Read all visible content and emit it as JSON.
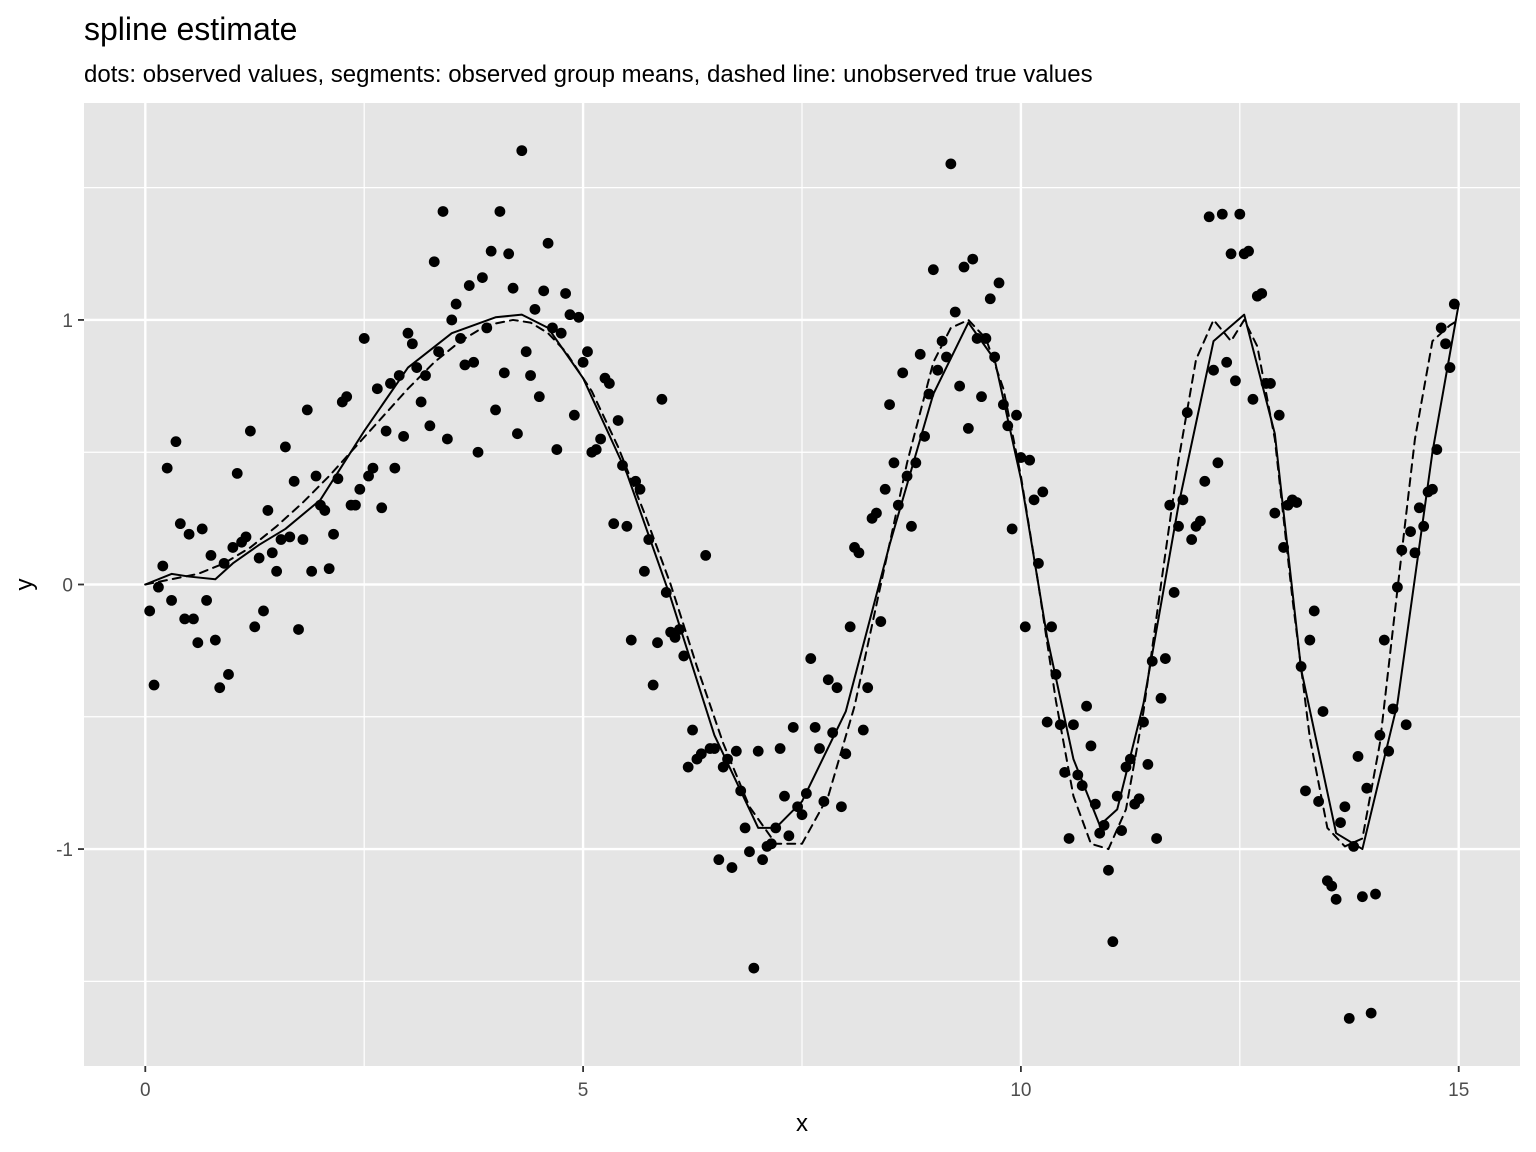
{
  "chart_data": {
    "type": "scatter",
    "title": "spline estimate",
    "subtitle": "dots: observed values, segments: observed group means, dashed line: unobserved true values",
    "xlabel": "x",
    "ylabel": "y",
    "xlim": [
      -0.7,
      15.7
    ],
    "ylim": [
      -1.82,
      1.82
    ],
    "x_ticks": [
      0,
      5,
      10,
      15
    ],
    "x_tick_labels": [
      "0",
      "5",
      "10",
      "15"
    ],
    "y_ticks": [
      -1,
      0,
      1
    ],
    "y_tick_labels": [
      "-1",
      "0",
      "1"
    ],
    "x_minor_ticks": [
      2.5,
      7.5,
      12.5
    ],
    "y_minor_ticks": [
      -1.5,
      -0.5,
      0.5,
      1.5
    ],
    "grid": true,
    "legend": "none",
    "colors": {
      "panel_background": "#e5e5e5",
      "grid_line": "#ffffff",
      "points": "#000000",
      "lines": "#000000",
      "tick_text": "#4d4d4d"
    },
    "series": [
      {
        "type": "points",
        "x": [
          0.05,
          0.1,
          0.15,
          0.2,
          0.25,
          0.3,
          0.35,
          0.4,
          0.45,
          0.5,
          0.55,
          0.6,
          0.65,
          0.7,
          0.75,
          0.8,
          0.85,
          0.9,
          0.95,
          1.0,
          1.05,
          1.1,
          1.15,
          1.2,
          1.25,
          1.3,
          1.35,
          1.4,
          1.45,
          1.5,
          1.55,
          1.6,
          1.65,
          1.7,
          1.75,
          1.8,
          1.85,
          1.9,
          1.95,
          2.0,
          2.05,
          2.1,
          2.15,
          2.2,
          2.25,
          2.3,
          2.35,
          2.4,
          2.45,
          2.5,
          2.55,
          2.6,
          2.65,
          2.7,
          2.75,
          2.8,
          2.85,
          2.9,
          2.95,
          3.0,
          3.05,
          3.1,
          3.15,
          3.2,
          3.25,
          3.3,
          3.35,
          3.4,
          3.45,
          3.5,
          3.55,
          3.6,
          3.65,
          3.7,
          3.75,
          3.8,
          3.85,
          3.9,
          3.95,
          4.0,
          4.05,
          4.1,
          4.15,
          4.2,
          4.25,
          4.3,
          4.35,
          4.4,
          4.45,
          4.5,
          4.55,
          4.6,
          4.65,
          4.7,
          4.75,
          4.8,
          4.85,
          4.9,
          4.95,
          5.0,
          5.05,
          5.1,
          5.15,
          5.2,
          5.25,
          5.3,
          5.35,
          5.4,
          5.45,
          5.5,
          5.55,
          5.6,
          5.65,
          5.7,
          5.75,
          5.8,
          5.85,
          5.9,
          5.95,
          6.0,
          6.05,
          6.1,
          6.15,
          6.2,
          6.25,
          6.3,
          6.35,
          6.4,
          6.45,
          6.5,
          6.55,
          6.6,
          6.65,
          6.7,
          6.75,
          6.8,
          6.85,
          6.9,
          6.95,
          7.0,
          7.05,
          7.1,
          7.15,
          7.2,
          7.25,
          7.3,
          7.35,
          7.4,
          7.45,
          7.5,
          7.55,
          7.6,
          7.65,
          7.7,
          7.75,
          7.8,
          7.85,
          7.9,
          7.95,
          8.0,
          8.05,
          8.1,
          8.15,
          8.2,
          8.25,
          8.3,
          8.35,
          8.4,
          8.45,
          8.5,
          8.55,
          8.6,
          8.65,
          8.7,
          8.75,
          8.8,
          8.85,
          8.9,
          8.95,
          9.0,
          9.05,
          9.1,
          9.15,
          9.2,
          9.25,
          9.3,
          9.35,
          9.4,
          9.45,
          9.5,
          9.55,
          9.6,
          9.65,
          9.7,
          9.75,
          9.8,
          9.85,
          9.9,
          9.95,
          10.0,
          10.05,
          10.1,
          10.15,
          10.2,
          10.25,
          10.3,
          10.35,
          10.4,
          10.45,
          10.5,
          10.55,
          10.6,
          10.65,
          10.7,
          10.75,
          10.8,
          10.85,
          10.9,
          10.95,
          11.0,
          11.05,
          11.1,
          11.15,
          11.2,
          11.25,
          11.3,
          11.35,
          11.4,
          11.45,
          11.5,
          11.55,
          11.6,
          11.65,
          11.7,
          11.75,
          11.8,
          11.85,
          11.9,
          11.95,
          12.0,
          12.05,
          12.1,
          12.15,
          12.2,
          12.25,
          12.3,
          12.35,
          12.4,
          12.45,
          12.5,
          12.55,
          12.6,
          12.65,
          12.7,
          12.75,
          12.8,
          12.85,
          12.9,
          12.95,
          13.0,
          13.05,
          13.1,
          13.15,
          13.2,
          13.25,
          13.3,
          13.35,
          13.4,
          13.45,
          13.5,
          13.55,
          13.6,
          13.65,
          13.7,
          13.75,
          13.8,
          13.85,
          13.9,
          13.95,
          14.0,
          14.05,
          14.1,
          14.15,
          14.2,
          14.25,
          14.3,
          14.35,
          14.4,
          14.45,
          14.5,
          14.55,
          14.6,
          14.65,
          14.7,
          14.75,
          14.8,
          14.85,
          14.9,
          14.95
        ],
        "y": [
          -0.1,
          -0.38,
          -0.01,
          0.07,
          0.44,
          -0.06,
          0.54,
          0.23,
          -0.13,
          0.19,
          -0.13,
          -0.22,
          0.21,
          -0.06,
          0.11,
          -0.21,
          -0.39,
          0.08,
          -0.34,
          0.14,
          0.42,
          0.16,
          0.18,
          0.58,
          -0.16,
          0.1,
          -0.1,
          0.28,
          0.12,
          0.05,
          0.17,
          0.52,
          0.18,
          0.39,
          -0.17,
          0.17,
          0.66,
          0.05,
          0.41,
          0.3,
          0.28,
          0.06,
          0.19,
          0.4,
          0.69,
          0.71,
          0.3,
          0.3,
          0.36,
          0.93,
          0.41,
          0.44,
          0.74,
          0.29,
          0.58,
          0.76,
          0.44,
          0.79,
          0.56,
          0.95,
          0.91,
          0.82,
          0.69,
          0.79,
          0.6,
          1.22,
          0.88,
          1.41,
          0.55,
          1.0,
          1.06,
          0.93,
          0.83,
          1.13,
          0.84,
          0.5,
          1.16,
          0.97,
          1.26,
          0.66,
          1.41,
          0.8,
          1.25,
          1.12,
          0.57,
          1.64,
          0.88,
          0.79,
          1.04,
          0.71,
          1.11,
          1.29,
          0.97,
          0.51,
          0.95,
          1.1,
          1.02,
          0.64,
          1.01,
          0.84,
          0.88,
          0.5,
          0.51,
          0.55,
          0.78,
          0.76,
          0.23,
          0.62,
          0.45,
          0.22,
          -0.21,
          0.39,
          0.36,
          0.05,
          0.17,
          -0.38,
          -0.22,
          0.7,
          -0.03,
          -0.18,
          -0.2,
          -0.17,
          -0.27,
          -0.69,
          -0.55,
          -0.66,
          -0.64,
          0.11,
          -0.62,
          -0.62,
          -1.04,
          -0.69,
          -0.66,
          -1.07,
          -0.63,
          -0.78,
          -0.92,
          -1.01,
          -1.45,
          -0.63,
          -1.04,
          -0.99,
          -0.98,
          -0.92,
          -0.62,
          -0.8,
          -0.95,
          -0.54,
          -0.84,
          -0.87,
          -0.79,
          -0.28,
          -0.54,
          -0.62,
          -0.82,
          -0.36,
          -0.56,
          -0.39,
          -0.84,
          -0.64,
          -0.16,
          0.14,
          0.12,
          -0.55,
          -0.39,
          0.25,
          0.27,
          -0.14,
          0.36,
          0.68,
          0.46,
          0.3,
          0.8,
          0.41,
          0.22,
          0.46,
          0.87,
          0.56,
          0.72,
          1.19,
          0.81,
          0.92,
          0.86,
          1.59,
          1.03,
          0.75,
          1.2,
          0.59,
          1.23,
          0.93,
          0.71,
          0.93,
          1.08,
          0.86,
          1.14,
          0.68,
          0.6,
          0.21,
          0.64,
          0.48,
          -0.16,
          0.47,
          0.32,
          0.08,
          0.35,
          -0.52,
          -0.16,
          -0.34,
          -0.53,
          -0.71,
          -0.96,
          -0.53,
          -0.72,
          -0.76,
          -0.46,
          -0.61,
          -0.83,
          -0.94,
          -0.91,
          -1.08,
          -1.35,
          -0.8,
          -0.93,
          -0.69,
          -0.66,
          -0.83,
          -0.81,
          -0.52,
          -0.68,
          -0.29,
          -0.96,
          -0.43,
          -0.28,
          0.3,
          -0.03,
          0.22,
          0.32,
          0.65,
          0.17,
          0.22,
          0.24,
          0.39,
          1.39,
          0.81,
          0.46,
          1.4,
          0.84,
          1.25,
          0.77,
          1.4,
          1.25,
          1.26,
          0.7,
          1.09,
          1.1,
          0.76,
          0.76,
          0.27,
          0.64,
          0.14,
          0.3,
          0.32,
          0.31,
          -0.31,
          -0.78,
          -0.21,
          -0.1,
          -0.82,
          -0.48,
          -1.12,
          -1.14,
          -1.19,
          -0.9,
          -0.84,
          -1.64,
          -0.99,
          -0.65,
          -1.18,
          -0.77,
          -1.62,
          -1.17,
          -0.57,
          -0.21,
          -0.63,
          -0.47,
          -0.01,
          0.13,
          -0.53,
          0.2,
          0.12,
          0.29,
          0.22,
          0.35,
          0.36,
          0.51,
          0.97,
          0.91,
          0.82,
          1.06
        ]
      },
      {
        "name": "spline fit",
        "type": "line",
        "x": [
          0,
          0.3,
          0.5,
          0.8,
          1.0,
          1.3,
          1.6,
          2.0,
          2.5,
          3.0,
          3.5,
          4.0,
          4.3,
          4.6,
          5.0,
          5.5,
          6.0,
          6.5,
          7.0,
          7.2,
          7.5,
          8.0,
          8.5,
          9.0,
          9.4,
          9.7,
          10.0,
          10.3,
          10.6,
          10.9,
          11.1,
          11.4,
          11.8,
          12.2,
          12.55,
          12.9,
          13.2,
          13.6,
          13.9,
          14.3,
          14.7,
          15.0
        ],
        "y": [
          0,
          0.04,
          0.03,
          0.02,
          0.08,
          0.15,
          0.21,
          0.32,
          0.58,
          0.82,
          0.95,
          1.01,
          1.02,
          0.97,
          0.78,
          0.42,
          -0.05,
          -0.57,
          -0.92,
          -0.92,
          -0.82,
          -0.48,
          0.15,
          0.72,
          0.99,
          0.85,
          0.4,
          -0.2,
          -0.66,
          -0.91,
          -0.85,
          -0.45,
          0.3,
          0.92,
          1.02,
          0.57,
          -0.32,
          -0.94,
          -1.0,
          -0.45,
          0.5,
          1.06
        ]
      },
      {
        "name": "true values",
        "type": "dashed-line",
        "x": [
          0,
          0.3,
          0.6,
          0.9,
          1.2,
          1.5,
          1.8,
          2.1,
          2.4,
          2.7,
          3.0,
          3.3,
          3.6,
          3.9,
          4.2,
          4.4,
          4.6,
          4.8,
          5.1,
          5.4,
          5.7,
          6.0,
          6.3,
          6.6,
          6.9,
          7.2,
          7.5,
          7.8,
          8.1,
          8.4,
          8.7,
          9.0,
          9.2,
          9.4,
          9.6,
          9.8,
          10.0,
          10.2,
          10.4,
          10.6,
          10.8,
          11.0,
          11.2,
          11.4,
          11.6,
          11.8,
          12.0,
          12.2,
          12.4,
          12.55,
          12.7,
          12.9,
          13.1,
          13.3,
          13.5,
          13.7,
          13.9,
          14.1,
          14.3,
          14.5,
          14.7,
          14.9,
          15.0
        ],
        "y": [
          0,
          0.02,
          0.04,
          0.08,
          0.14,
          0.22,
          0.31,
          0.41,
          0.52,
          0.63,
          0.74,
          0.84,
          0.92,
          0.98,
          1.0,
          0.99,
          0.95,
          0.88,
          0.73,
          0.52,
          0.27,
          0.0,
          -0.31,
          -0.6,
          -0.84,
          -0.98,
          -0.98,
          -0.8,
          -0.46,
          0.0,
          0.46,
          0.84,
          0.97,
          1.0,
          0.93,
          0.74,
          0.41,
          0.0,
          -0.44,
          -0.8,
          -0.98,
          -1.0,
          -0.85,
          -0.48,
          0.0,
          0.47,
          0.85,
          1.0,
          0.92,
          1.0,
          0.9,
          0.55,
          -0.05,
          -0.58,
          -0.92,
          -0.99,
          -0.96,
          -0.6,
          -0.02,
          0.55,
          0.92,
          0.98,
          1.0
        ]
      }
    ]
  }
}
